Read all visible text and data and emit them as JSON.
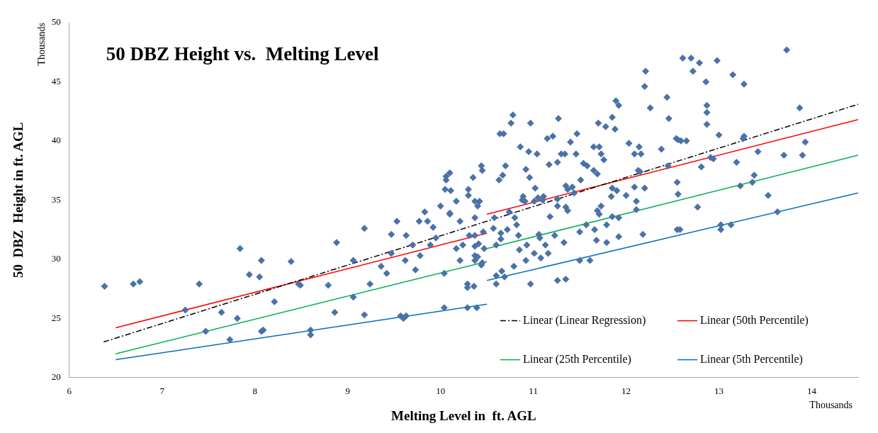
{
  "chart_data": {
    "type": "scatter",
    "title": "50 DBZ Height vs.  Melting Level",
    "xlabel": "Melting Level in  ft. AGL",
    "ylabel": "50  DBZ  Height in ft. AGL",
    "annotations": [
      "Thousands",
      "Thousands"
    ],
    "xlim": [
      6,
      14.5
    ],
    "xticks": [
      6,
      7,
      8,
      9,
      10,
      11,
      12,
      13,
      14
    ],
    "ylim": [
      20,
      50
    ],
    "yticks": [
      20,
      25,
      30,
      35,
      40,
      45,
      50
    ],
    "grid": false,
    "legend": "bottom right",
    "series": [
      {
        "color": "#4a72a6",
        "marker": "diamond",
        "x": [
          6.38,
          6.69,
          6.76,
          7.4,
          7.25,
          7.84,
          8.07,
          7.94,
          8.05,
          8.39,
          8.47,
          8.49,
          8.21,
          7.64,
          7.81,
          7.47,
          7.73,
          8.07,
          8.09,
          8.6,
          8.6,
          8.88,
          9.06,
          8.79,
          8.86,
          9.06,
          9.18,
          9.18,
          9.24,
          9.36,
          9.42,
          9.47,
          9.53,
          9.47,
          9.62,
          9.63,
          9.7,
          9.73,
          9.77,
          9.78,
          9.83,
          9.86,
          9.92,
          9.89,
          9.95,
          10.0,
          10.04,
          10.04,
          10.05,
          10.06,
          10.06,
          10.1,
          10.11,
          10.1,
          10.1,
          10.17,
          10.21,
          10.17,
          10.21,
          10.24,
          10.3,
          10.3,
          10.35,
          10.37,
          10.31,
          10.37,
          10.37,
          10.42,
          10.4,
          10.37,
          10.44,
          10.45,
          10.37,
          10.4,
          10.37,
          10.44,
          10.45,
          10.41,
          10.47,
          10.46,
          10.29,
          10.29,
          10.36,
          10.29,
          10.39,
          9.57,
          9.6,
          9.63,
          10.78,
          10.76,
          10.64,
          10.68,
          10.86,
          10.7,
          10.67,
          10.63,
          10.58,
          10.57,
          10.65,
          10.65,
          10.72,
          10.8,
          10.82,
          10.84,
          10.74,
          10.6,
          10.85,
          10.79,
          10.66,
          10.6,
          10.69,
          10.6,
          10.97,
          10.95,
          11.04,
          10.92,
          10.96,
          11.02,
          11.27,
          11.15,
          11.21,
          11.4,
          11.47,
          11.3,
          11.34,
          11.17,
          11.26,
          11.46,
          11.51,
          11.54,
          11.58,
          11.65,
          11.71,
          11.73,
          11.76,
          11.7,
          11.78,
          11.85,
          11.88,
          11.89,
          11.92,
          11.65,
          11.69,
          11.35,
          11.37,
          11.42,
          11.44,
          10.89,
          10.88,
          10.91,
          11.01,
          11.05,
          11.11,
          11.1,
          11.26,
          11.26,
          11.35,
          11.37,
          11.18,
          10.93,
          11.01,
          11.08,
          11.16,
          11.13,
          11.07,
          11.06,
          11.23,
          11.33,
          10.92,
          10.97,
          11.26,
          11.35,
          11.5,
          11.61,
          11.5,
          11.57,
          11.66,
          11.68,
          11.79,
          11.79,
          11.73,
          11.69,
          11.71,
          11.85,
          11.92,
          11.92,
          11.85,
          11.9,
          11.84,
          12.0,
          12.03,
          12.09,
          12.16,
          12.14,
          12.13,
          12.15,
          12.09,
          12.2,
          12.11,
          12.11,
          12.18,
          12.26,
          12.46,
          12.38,
          12.45,
          12.56,
          12.55,
          12.56,
          12.55,
          12.21,
          12.2,
          12.44,
          12.61,
          12.7,
          12.79,
          12.72,
          12.98,
          13.15,
          13.27,
          12.86,
          13.73,
          12.87,
          12.87,
          12.87,
          13.87,
          13.0,
          13.27,
          13.26,
          13.93,
          12.54,
          12.59,
          12.65,
          13.42,
          13.7,
          13.9,
          12.91,
          12.94,
          12.81,
          13.19,
          12.77,
          13.38,
          13.36,
          13.23,
          13.53,
          13.63,
          12.58,
          13.02,
          13.13,
          13.02
        ],
        "values": [
          27.7,
          27.9,
          28.1,
          27.9,
          25.7,
          30.9,
          29.9,
          28.7,
          28.5,
          29.8,
          27.9,
          27.8,
          26.4,
          25.5,
          25.0,
          23.9,
          23.2,
          23.9,
          24.0,
          24.0,
          23.6,
          31.4,
          29.9,
          27.8,
          25.5,
          26.8,
          25.3,
          32.6,
          27.9,
          29.4,
          28.8,
          32.1,
          33.2,
          30.5,
          29.9,
          32.0,
          31.2,
          29.1,
          33.2,
          30.3,
          34.0,
          33.2,
          32.7,
          31.2,
          31.8,
          34.5,
          28.8,
          25.9,
          35.9,
          36.7,
          37.0,
          37.3,
          35.8,
          33.9,
          33.8,
          34.9,
          33.2,
          30.9,
          29.9,
          31.2,
          35.9,
          35.4,
          36.9,
          33.5,
          32.0,
          32.0,
          34.9,
          34.9,
          34.5,
          31.1,
          37.9,
          37.5,
          30.3,
          30.2,
          29.9,
          29.5,
          29.7,
          31.3,
          30.9,
          32.3,
          27.9,
          27.6,
          27.7,
          25.9,
          25.9,
          25.2,
          25.0,
          25.2,
          42.2,
          41.5,
          40.6,
          40.6,
          39.5,
          37.9,
          37.1,
          36.7,
          33.5,
          32.6,
          32.2,
          31.7,
          32.5,
          33.5,
          32.9,
          32.0,
          34.0,
          31.2,
          30.8,
          29.4,
          29.0,
          28.6,
          28.5,
          27.9,
          41.5,
          39.1,
          38.9,
          37.6,
          36.9,
          36.0,
          41.9,
          40.2,
          40.4,
          39.9,
          40.6,
          38.9,
          38.9,
          38.0,
          38.2,
          38.9,
          36.7,
          38.1,
          37.9,
          39.5,
          39.5,
          38.9,
          38.4,
          41.5,
          41.2,
          42.0,
          41.0,
          43.4,
          43.0,
          37.5,
          37.2,
          36.2,
          35.9,
          36.1,
          35.6,
          35.3,
          35.0,
          34.9,
          34.9,
          35.2,
          35.3,
          35.0,
          35.1,
          34.5,
          34.4,
          34.1,
          33.6,
          31.2,
          30.5,
          30.1,
          30.5,
          31.2,
          31.8,
          32.1,
          32.0,
          31.4,
          29.9,
          27.9,
          28.2,
          28.3,
          29.9,
          29.9,
          32.3,
          32.9,
          32.5,
          31.6,
          31.4,
          32.9,
          34.5,
          34.1,
          33.8,
          33.6,
          33.5,
          31.9,
          36.0,
          35.8,
          35.3,
          35.4,
          39.8,
          38.9,
          38.9,
          39.5,
          37.5,
          37.4,
          36.1,
          36.0,
          34.9,
          34.2,
          32.1,
          42.8,
          41.9,
          39.3,
          37.9,
          40.1,
          36.5,
          35.5,
          32.5,
          45.9,
          44.6,
          43.7,
          47.0,
          47.0,
          46.6,
          45.9,
          46.8,
          45.6,
          44.8,
          45.0,
          47.7,
          43.0,
          42.4,
          41.4,
          42.8,
          40.5,
          40.4,
          40.2,
          39.9,
          40.2,
          40.0,
          40.0,
          39.1,
          38.8,
          38.8,
          38.6,
          38.5,
          37.8,
          38.2,
          34.4,
          37.1,
          36.5,
          36.2,
          35.4,
          34.0,
          32.5,
          32.9,
          32.9,
          32.5
        ]
      },
      {
        "type": "line",
        "name": "Linear (Linear Regression)",
        "color": "#000000",
        "line_style": "dashed",
        "marker": "none",
        "x": [
          6.37,
          14.5
        ],
        "values": [
          23.0,
          43.1
        ]
      },
      {
        "type": "line",
        "name": "Linear (50th Percentile)",
        "color": "#ff0000",
        "line_style": "solid",
        "marker": "none",
        "x": [
          6.5,
          10.5
        ],
        "values": [
          24.2,
          32.2
        ]
      },
      {
        "type": "line",
        "name": "Linear (25th Percentile)",
        "color": "#00b050",
        "line_style": "solid",
        "marker": "none",
        "x": [
          6.5,
          10.5
        ],
        "values": [
          22.0,
          29.8
        ]
      },
      {
        "type": "line",
        "name": "Linear (5th Percentile)",
        "color": "#0070c0",
        "line_style": "solid",
        "marker": "none",
        "x": [
          6.5,
          10.5
        ],
        "values": [
          21.5,
          26.2
        ]
      },
      {
        "type": "line",
        "color": "#ff0000",
        "line_style": "solid",
        "marker": "none",
        "x": [
          10.5,
          14.5
        ],
        "values": [
          33.8,
          41.8
        ]
      },
      {
        "type": "line",
        "color": "#00b050",
        "line_style": "solid",
        "marker": "none",
        "x": [
          10.5,
          14.5
        ],
        "values": [
          30.9,
          38.8
        ]
      },
      {
        "type": "line",
        "color": "#0070c0",
        "line_style": "solid",
        "marker": "none",
        "x": [
          10.5,
          14.5
        ],
        "values": [
          28.2,
          35.6
        ]
      }
    ]
  }
}
